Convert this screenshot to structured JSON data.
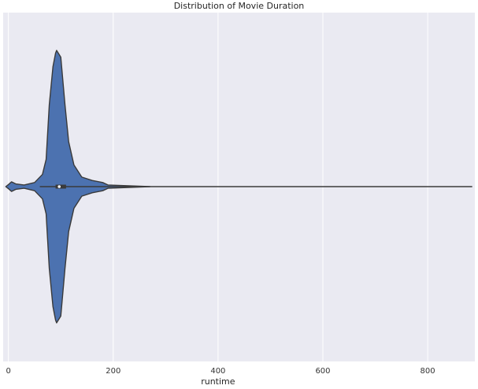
{
  "chart_data": {
    "type": "violin",
    "title": "Distribution of Movie Duration",
    "xlabel": "runtime",
    "ylabel": "",
    "xlim": [
      -10,
      890
    ],
    "xticks": [
      0,
      200,
      400,
      600,
      800
    ],
    "grid": true,
    "orientation": "horizontal",
    "density_profile": [
      {
        "x": -5,
        "half_width": 0.0
      },
      {
        "x": 0,
        "half_width": 0.015
      },
      {
        "x": 6,
        "half_width": 0.035
      },
      {
        "x": 14,
        "half_width": 0.02
      },
      {
        "x": 30,
        "half_width": 0.012
      },
      {
        "x": 50,
        "half_width": 0.03
      },
      {
        "x": 65,
        "half_width": 0.09
      },
      {
        "x": 72,
        "half_width": 0.2
      },
      {
        "x": 78,
        "half_width": 0.6
      },
      {
        "x": 85,
        "half_width": 0.88
      },
      {
        "x": 90,
        "half_width": 0.98
      },
      {
        "x": 92,
        "half_width": 1.0
      },
      {
        "x": 100,
        "half_width": 0.95
      },
      {
        "x": 108,
        "half_width": 0.6
      },
      {
        "x": 115,
        "half_width": 0.33
      },
      {
        "x": 125,
        "half_width": 0.16
      },
      {
        "x": 140,
        "half_width": 0.07
      },
      {
        "x": 160,
        "half_width": 0.045
      },
      {
        "x": 180,
        "half_width": 0.03
      },
      {
        "x": 190,
        "half_width": 0.012
      },
      {
        "x": 230,
        "half_width": 0.006
      },
      {
        "x": 270,
        "half_width": 0.0
      }
    ],
    "summary": {
      "min": -5,
      "q1": 90,
      "median": 97,
      "q3": 110,
      "whisker_low": 60,
      "whisker_high": 140,
      "max": 885
    },
    "fill_color": "#4c72b0",
    "edge_color": "#3a3a3a",
    "background_color": "#eaeaf2"
  }
}
